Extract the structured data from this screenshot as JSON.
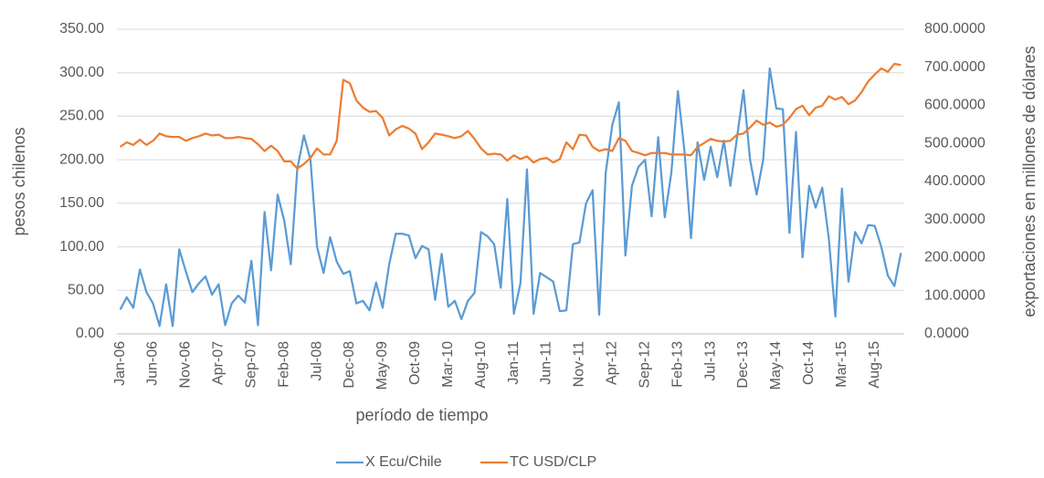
{
  "chart_data": {
    "type": "line",
    "x_label": "período de tiempo",
    "y_label": "pesos chilenos",
    "y2_label": "exportaciones en millones de dólares",
    "categories": [
      "Jan-06",
      null,
      null,
      null,
      null,
      "Jun-06",
      null,
      null,
      null,
      null,
      "Nov-06",
      null,
      null,
      null,
      null,
      "Apr-07",
      null,
      null,
      null,
      null,
      "Sep-07",
      null,
      null,
      null,
      null,
      "Feb-08",
      null,
      null,
      null,
      null,
      "Jul-08",
      null,
      null,
      null,
      null,
      "Dec-08",
      null,
      null,
      null,
      null,
      "May-09",
      null,
      null,
      null,
      null,
      "Oct-09",
      null,
      null,
      null,
      null,
      "Mar-10",
      null,
      null,
      null,
      null,
      "Aug-10",
      null,
      null,
      null,
      null,
      "Jan-11",
      null,
      null,
      null,
      null,
      "Jun-11",
      null,
      null,
      null,
      null,
      "Nov-11",
      null,
      null,
      null,
      null,
      "Apr-12",
      null,
      null,
      null,
      null,
      "Sep-12",
      null,
      null,
      null,
      null,
      "Feb-13",
      null,
      null,
      null,
      null,
      "Jul-13",
      null,
      null,
      null,
      null,
      "Dec-13",
      null,
      null,
      null,
      null,
      "May-14",
      null,
      null,
      null,
      null,
      "Oct-14",
      null,
      null,
      null,
      null,
      "Mar-15",
      null,
      null,
      null,
      null,
      "Aug-15",
      null,
      null,
      null,
      null
    ],
    "series": [
      {
        "name": "X Ecu/Chile",
        "color": "#5b9bd5",
        "axis": "y",
        "values": [
          28,
          42,
          30,
          74,
          48,
          35,
          9,
          57,
          9,
          97,
          72,
          48,
          58,
          66,
          45,
          57,
          10,
          35,
          44,
          36,
          84,
          10,
          140,
          73,
          160,
          130,
          80,
          190,
          228,
          200,
          100,
          70,
          111,
          83,
          69,
          72,
          35,
          38,
          27,
          59,
          30,
          80,
          115,
          115,
          113,
          87,
          101,
          97,
          39,
          92,
          31,
          38,
          17,
          38,
          47,
          117,
          112,
          103,
          53,
          155,
          23,
          58,
          189,
          23,
          70,
          65,
          60,
          26,
          27,
          103,
          105,
          150,
          165,
          22,
          185,
          240,
          266,
          90,
          170,
          192,
          200,
          135,
          226,
          134,
          185,
          279,
          210,
          110,
          220,
          177,
          215,
          180,
          222,
          170,
          225,
          280,
          200,
          160,
          200,
          305,
          259,
          258,
          116,
          232,
          88,
          170,
          145,
          168,
          110,
          20,
          167,
          60,
          117,
          104,
          125,
          124,
          100,
          67,
          55,
          93
        ]
      },
      {
        "name": "TC USD/CLP",
        "color": "#ed7d31",
        "axis": "y2",
        "values": [
          491,
          503,
          496,
          510,
          496,
          507,
          526,
          519,
          517,
          517,
          507,
          514,
          519,
          526,
          521,
          523,
          514,
          514,
          517,
          514,
          512,
          498,
          480,
          494,
          480,
          453,
          453,
          434,
          446,
          462,
          487,
          471,
          471,
          507,
          667,
          658,
          613,
          594,
          583,
          585,
          567,
          521,
          537,
          546,
          539,
          526,
          485,
          503,
          526,
          523,
          519,
          514,
          519,
          533,
          512,
          487,
          471,
          473,
          471,
          455,
          469,
          459,
          466,
          450,
          459,
          462,
          450,
          459,
          503,
          485,
          523,
          521,
          491,
          480,
          485,
          480,
          514,
          507,
          480,
          475,
          469,
          475,
          475,
          475,
          471,
          471,
          471,
          469,
          491,
          501,
          512,
          507,
          505,
          507,
          523,
          526,
          542,
          560,
          549,
          555,
          544,
          549,
          567,
          590,
          599,
          574,
          594,
          599,
          624,
          615,
          622,
          603,
          613,
          635,
          663,
          681,
          697,
          688,
          709,
          706
        ]
      }
    ],
    "ylim": [
      0,
      350
    ],
    "yticks": [
      {
        "value": 0,
        "label": "0.00"
      },
      {
        "value": 50,
        "label": "50.00"
      },
      {
        "value": 100,
        "label": "100.00"
      },
      {
        "value": 150,
        "label": "150.00"
      },
      {
        "value": 200,
        "label": "200.00"
      },
      {
        "value": 250,
        "label": "250.00"
      },
      {
        "value": 300,
        "label": "300.00"
      },
      {
        "value": 350,
        "label": "350.00"
      }
    ],
    "y2lim": [
      0,
      800
    ],
    "y2ticks": [
      {
        "value": 0,
        "label": "0.0000"
      },
      {
        "value": 100,
        "label": "100.0000"
      },
      {
        "value": 200,
        "label": "200.0000"
      },
      {
        "value": 300,
        "label": "300.0000"
      },
      {
        "value": 400,
        "label": "400.0000"
      },
      {
        "value": 500,
        "label": "500.0000"
      },
      {
        "value": 600,
        "label": "600.0000"
      },
      {
        "value": 700,
        "label": "700.0000"
      },
      {
        "value": 800,
        "label": "800.0000"
      }
    ],
    "grid": true,
    "legend": "bottom"
  }
}
